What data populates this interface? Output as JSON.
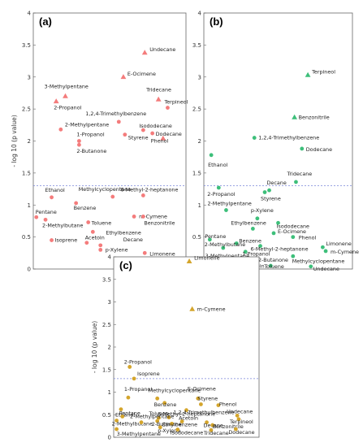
{
  "figure": {
    "ylabel": "- log 10 (p value)",
    "threshold": 1.3,
    "marker_legend": {
      "circle": "",
      "triangle": ""
    }
  },
  "chart_data": [
    {
      "type": "scatter",
      "panel_label": "(a)",
      "color": "#f47c7c",
      "ylim": [
        0,
        4
      ],
      "yticks": [
        0,
        0.5,
        1,
        1.5,
        2,
        2.5,
        3,
        3.5,
        4
      ],
      "points": [
        {
          "label": "Undecane",
          "y": 3.38,
          "marker": "triangle"
        },
        {
          "label": "E-Ocimene",
          "y": 3.0,
          "marker": "triangle"
        },
        {
          "label": "3-Methylpentane",
          "y": 2.7,
          "marker": "triangle"
        },
        {
          "label": "2-Propanol",
          "y": 2.62,
          "marker": "triangle"
        },
        {
          "label": "Tridecane",
          "y": 2.65,
          "marker": "triangle"
        },
        {
          "label": "Terpineol",
          "y": 2.52,
          "marker": "circle"
        },
        {
          "label": "1,2,4-Trimethylbenzene",
          "y": 2.3,
          "marker": "circle"
        },
        {
          "label": "2-Methylpentane",
          "y": 2.18,
          "marker": "circle"
        },
        {
          "label": "Isododecane",
          "y": 2.17,
          "marker": "circle"
        },
        {
          "label": "Dodecane",
          "y": 2.12,
          "marker": "circle"
        },
        {
          "label": "Styrene",
          "y": 2.1,
          "marker": "circle"
        },
        {
          "label": "1-Propanol",
          "y": 2.0,
          "marker": "circle"
        },
        {
          "label": "Phenol",
          "y": 2.04,
          "marker": "triangle"
        },
        {
          "label": "2-Butanone",
          "y": 1.94,
          "marker": "circle"
        },
        {
          "label": "Ethanol",
          "y": 1.12,
          "marker": "circle"
        },
        {
          "label": "Methylcyclopentane",
          "y": 1.13,
          "marker": "circle"
        },
        {
          "label": "6-Methyl-2-heptanone",
          "y": 1.15,
          "marker": "circle"
        },
        {
          "label": "Benzene",
          "y": 1.03,
          "marker": "circle"
        },
        {
          "label": "Pentane",
          "y": 0.81,
          "marker": "circle"
        },
        {
          "label": "2-Methylbutane",
          "y": 0.77,
          "marker": "circle"
        },
        {
          "label": "Toluene",
          "y": 0.73,
          "marker": "circle"
        },
        {
          "label": "m-Cymene",
          "y": 0.82,
          "marker": "circle"
        },
        {
          "label": "Benzonitrile",
          "y": 0.82,
          "marker": "circle"
        },
        {
          "label": "Ethylbenzene",
          "y": 0.58,
          "marker": "circle"
        },
        {
          "label": "Isoprene",
          "y": 0.45,
          "marker": "circle"
        },
        {
          "label": "Acetoin",
          "y": 0.41,
          "marker": "circle"
        },
        {
          "label": "Decane",
          "y": 0.37,
          "marker": "circle"
        },
        {
          "label": "p-Xylene",
          "y": 0.3,
          "marker": "circle"
        },
        {
          "label": "Limonene",
          "y": 0.25,
          "marker": "circle"
        }
      ]
    },
    {
      "type": "scatter",
      "panel_label": "(b)",
      "color": "#3dbf7a",
      "ylim": [
        0,
        4
      ],
      "yticks": [
        0,
        0.5,
        1,
        1.5,
        2,
        2.5,
        3,
        3.5,
        4
      ],
      "points": [
        {
          "label": "Terpineol",
          "y": 3.03,
          "marker": "triangle"
        },
        {
          "label": "Benzonitrile",
          "y": 2.37,
          "marker": "triangle"
        },
        {
          "label": "1,2,4-Trimethylbenzene",
          "y": 2.05,
          "marker": "circle"
        },
        {
          "label": "Dodecane",
          "y": 1.88,
          "marker": "circle"
        },
        {
          "label": "Ethanol",
          "y": 1.78,
          "marker": "circle"
        },
        {
          "label": "Tridecane",
          "y": 1.36,
          "marker": "circle"
        },
        {
          "label": "2-Propanol",
          "y": 1.27,
          "marker": "circle"
        },
        {
          "label": "Decane",
          "y": 1.23,
          "marker": "circle"
        },
        {
          "label": "Styrene",
          "y": 1.2,
          "marker": "circle"
        },
        {
          "label": "2-Methylpentane",
          "y": 0.92,
          "marker": "circle"
        },
        {
          "label": "p-Xylene",
          "y": 0.79,
          "marker": "circle"
        },
        {
          "label": "Isododecane",
          "y": 0.72,
          "marker": "circle"
        },
        {
          "label": "Ethylbenzene",
          "y": 0.63,
          "marker": "circle"
        },
        {
          "label": "E-Ocimene",
          "y": 0.56,
          "marker": "circle"
        },
        {
          "label": "Phenol",
          "y": 0.5,
          "marker": "circle"
        },
        {
          "label": "Pentane",
          "y": 0.46,
          "marker": "circle"
        },
        {
          "label": "Benzene",
          "y": 0.4,
          "marker": "circle"
        },
        {
          "label": "6-Methyl-2-heptanone",
          "y": 0.36,
          "marker": "circle"
        },
        {
          "label": "2-Methylbutane",
          "y": 0.33,
          "marker": "circle"
        },
        {
          "label": "1-Propanol",
          "y": 0.27,
          "marker": "circle"
        },
        {
          "label": "Limonene",
          "y": 0.34,
          "marker": "circle"
        },
        {
          "label": "m-Cymene",
          "y": 0.28,
          "marker": "circle"
        },
        {
          "label": "Methylcyclopentane",
          "y": 0.2,
          "marker": "circle"
        },
        {
          "label": "3-Methylpentane",
          "y": 0.15,
          "marker": "circle"
        },
        {
          "label": "2-Butanone",
          "y": 0.14,
          "marker": "circle"
        },
        {
          "label": "Isoprene",
          "y": 0.08,
          "marker": "circle"
        },
        {
          "label": "Acetoin",
          "y": 0.06,
          "marker": "circle"
        },
        {
          "label": "Toluene",
          "y": 0.05,
          "marker": "circle"
        },
        {
          "label": "Undecane",
          "y": 0.04,
          "marker": "circle"
        }
      ]
    },
    {
      "type": "scatter",
      "panel_label": "(c)",
      "color": "#d4a52c",
      "ylim": [
        0,
        4
      ],
      "yticks": [
        0,
        0.5,
        1,
        1.5,
        2,
        2.5,
        3,
        3.5,
        4
      ],
      "points": [
        {
          "label": "Limonene",
          "y": 3.9,
          "marker": "triangle"
        },
        {
          "label": "m-Cymene",
          "y": 2.84,
          "marker": "triangle"
        },
        {
          "label": "2-Propanol",
          "y": 1.56,
          "marker": "circle"
        },
        {
          "label": "Isoprene",
          "y": 1.3,
          "marker": "circle"
        },
        {
          "label": "1-Propanol",
          "y": 0.88,
          "marker": "circle"
        },
        {
          "label": "Methylcyclopentane",
          "y": 0.86,
          "marker": "circle"
        },
        {
          "label": "E-Ocimene",
          "y": 0.86,
          "marker": "circle"
        },
        {
          "label": "Styrene",
          "y": 0.73,
          "marker": "circle"
        },
        {
          "label": "Benzene",
          "y": 0.76,
          "marker": "circle"
        },
        {
          "label": "Phenol",
          "y": 0.71,
          "marker": "circle"
        },
        {
          "label": "Ethanol",
          "y": 0.62,
          "marker": "circle"
        },
        {
          "label": "1,2,4-Trimethylbenzene",
          "y": 0.6,
          "marker": "circle"
        },
        {
          "label": "Undecane",
          "y": 0.48,
          "marker": "circle"
        },
        {
          "label": "Pentane",
          "y": 0.46,
          "marker": "circle"
        },
        {
          "label": "Toluene",
          "y": 0.43,
          "marker": "circle"
        },
        {
          "label": "6-Methyl-2-heptanone",
          "y": 0.44,
          "marker": "circle"
        },
        {
          "label": "Terpineol",
          "y": 0.4,
          "marker": "circle"
        },
        {
          "label": "2-Methylbutane",
          "y": 0.37,
          "marker": "circle"
        },
        {
          "label": "2-Butanone",
          "y": 0.36,
          "marker": "circle"
        },
        {
          "label": "Acetoin",
          "y": 0.35,
          "marker": "circle"
        },
        {
          "label": "2-Methylpentane",
          "y": 0.33,
          "marker": "circle"
        },
        {
          "label": "Decane",
          "y": 0.33,
          "marker": "circle"
        },
        {
          "label": "Ethylbenzene",
          "y": 0.3,
          "marker": "circle"
        },
        {
          "label": "Benzonitrile",
          "y": 0.27,
          "marker": "circle"
        },
        {
          "label": "p-Xylene",
          "y": 0.22,
          "marker": "circle"
        },
        {
          "label": "3-Methylpentane",
          "y": 0.18,
          "marker": "circle"
        },
        {
          "label": "Isododecane",
          "y": 0.17,
          "marker": "circle"
        },
        {
          "label": "Tridecane",
          "y": 0.16,
          "marker": "circle"
        },
        {
          "label": "Dodecane",
          "y": 0.18,
          "marker": "circle"
        }
      ]
    }
  ]
}
